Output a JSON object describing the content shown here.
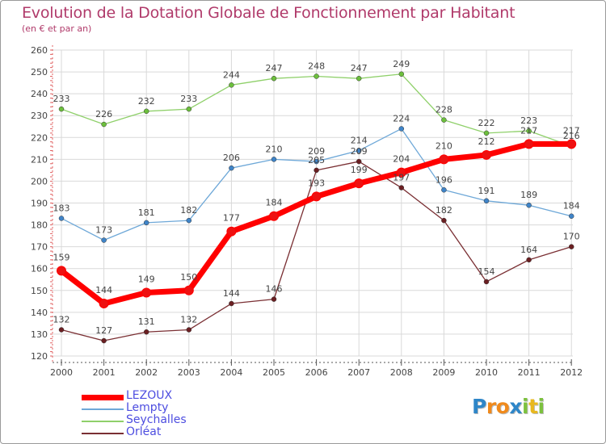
{
  "chart_data": {
    "type": "line",
    "title": "Evolution de la Dotation Globale de Fonctionnement par Habitant",
    "subtitle": "(en € et par an)",
    "xlabel": "",
    "ylabel": "",
    "ylim": [
      120,
      260
    ],
    "yticks": [
      120,
      130,
      140,
      150,
      160,
      170,
      180,
      190,
      200,
      210,
      220,
      230,
      240,
      250,
      260
    ],
    "categories": [
      "2000",
      "2001",
      "2002",
      "2003",
      "2004",
      "2005",
      "2006",
      "2007",
      "2008",
      "2009",
      "2010",
      "2011",
      "2012"
    ],
    "grid": true,
    "legend_position": "bottom-left",
    "series": [
      {
        "name": "Seychalles",
        "color": "#8fd06a",
        "marker": "#6cbf3c",
        "width": 1.3,
        "label_offset": -13,
        "values": [
          233,
          226,
          232,
          233,
          244,
          247,
          248,
          247,
          249,
          228,
          222,
          223,
          216
        ]
      },
      {
        "name": "Lempty",
        "color": "#6ea8d8",
        "marker": "#3f84c8",
        "width": 1.3,
        "label_offset": -13,
        "values": [
          183,
          173,
          181,
          182,
          206,
          210,
          209,
          214,
          224,
          196,
          191,
          189,
          184
        ]
      },
      {
        "name": "Orléat",
        "color": "#7a2f33",
        "marker": "#6b1f22",
        "width": 1.3,
        "label_offset": -13,
        "values": [
          132,
          127,
          131,
          132,
          144,
          146,
          205,
          209,
          197,
          182,
          154,
          164,
          170
        ]
      },
      {
        "name": "LEZOUX",
        "color": "#ff0000",
        "marker": "#ee1111",
        "width": 7,
        "label_offset": -17,
        "values": [
          159,
          144,
          149,
          150,
          177,
          184,
          193,
          199,
          204,
          210,
          212,
          217,
          217
        ]
      }
    ],
    "legend_order": [
      "LEZOUX",
      "Lempty",
      "Seychalles",
      "Orléat"
    ]
  },
  "legend": {
    "items": [
      {
        "label": "LEZOUX",
        "color": "#ff0000",
        "thickness": 7
      },
      {
        "label": "Lempty",
        "color": "#6ea8d8",
        "thickness": 2
      },
      {
        "label": "Seychalles",
        "color": "#8fd06a",
        "thickness": 2
      },
      {
        "label": "Orléat",
        "color": "#7a2f33",
        "thickness": 2
      }
    ]
  },
  "logo": {
    "letters": [
      "P",
      "r",
      "o",
      "x",
      "i",
      "t",
      "i"
    ],
    "colors": [
      "#2e86c8",
      "#f08a1c",
      "#f08a1c",
      "#2e86c8",
      "#7cc13e",
      "#e8b820",
      "#7cc13e"
    ]
  }
}
